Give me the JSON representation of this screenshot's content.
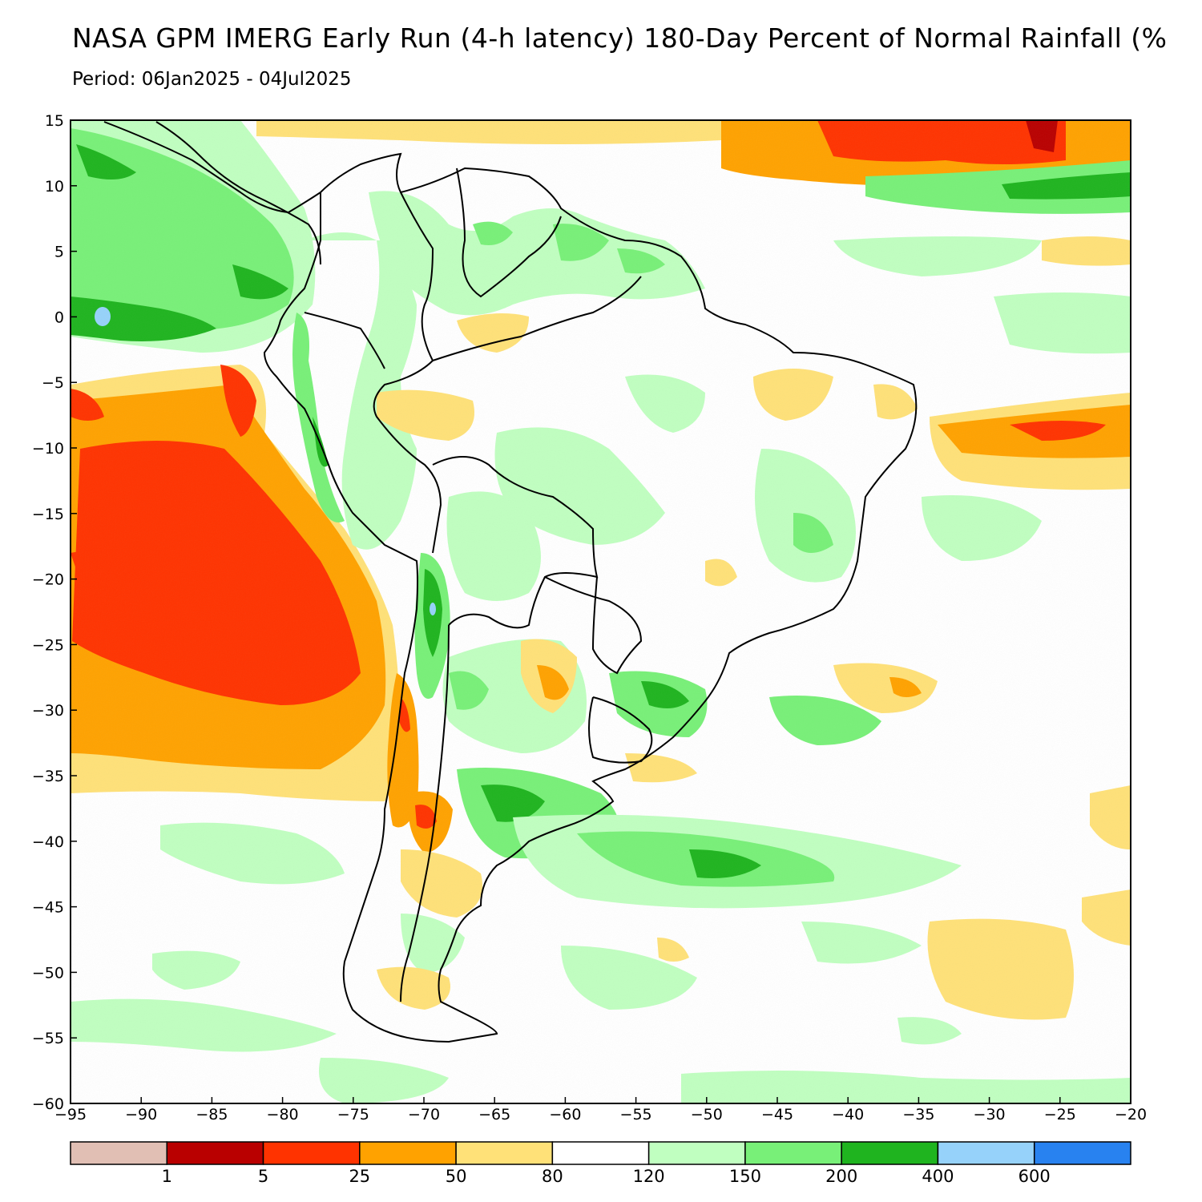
{
  "header": {
    "title": "NASA GPM IMERG Early Run (4-h latency) 180-Day Percent of Normal Rainfall (%",
    "period": "Period: 06Jan2025 - 04Jul2025"
  },
  "map": {
    "lon_range": [
      -95,
      -20
    ],
    "lat_range": [
      -60,
      15
    ],
    "x_ticks": [
      -95,
      -90,
      -85,
      -80,
      -75,
      -70,
      -65,
      -60,
      -55,
      -50,
      -45,
      -40,
      -35,
      -30,
      -25,
      -20
    ],
    "y_ticks": [
      15,
      10,
      5,
      0,
      -5,
      -10,
      -15,
      -20,
      -25,
      -30,
      -35,
      -40,
      -45,
      -50,
      -55,
      -60
    ]
  },
  "colorbar": {
    "colors": [
      "#e1bfb4",
      "#b90000",
      "#ff3300",
      "#ffa200",
      "#ffe178",
      "#ffffff",
      "#c0ffc0",
      "#78f078",
      "#1fb41f",
      "#96d2fa",
      "#2882f0"
    ],
    "labels": [
      "1",
      "5",
      "25",
      "50",
      "80",
      "120",
      "150",
      "200",
      "400",
      "600"
    ]
  }
}
